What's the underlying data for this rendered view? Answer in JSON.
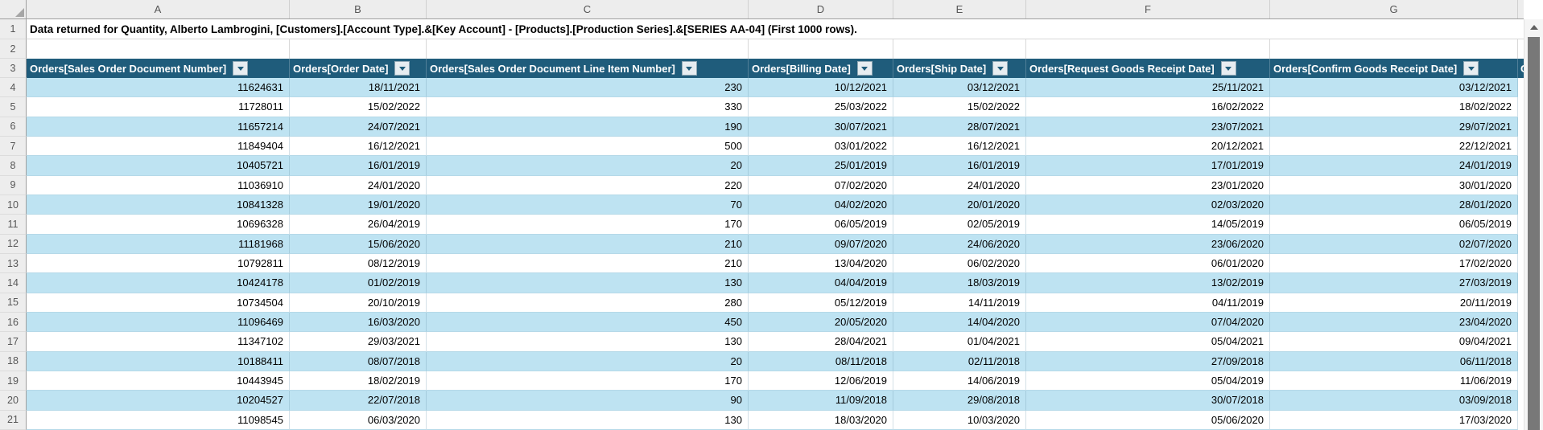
{
  "sheet": {
    "info_text": "Data returned for Quantity, Alberto Lambrogini, [Customers].[Account Type].&[Key Account] - [Products].[Production Series].&[SERIES AA-04] (First 1000 rows).",
    "column_letters": [
      "A",
      "B",
      "C",
      "D",
      "E",
      "F",
      "G"
    ],
    "row_numbers": [
      1,
      2,
      3,
      4,
      5,
      6,
      7,
      8,
      9,
      10,
      11,
      12,
      13,
      14,
      15,
      16,
      17,
      18,
      19,
      20,
      21
    ],
    "table": {
      "headers": [
        "Orders[Sales Order Document Number]",
        "Orders[Order Date]",
        "Orders[Sales Order Document Line Item Number]",
        "Orders[Billing Date]",
        "Orders[Ship Date]",
        "Orders[Request Goods Receipt Date]",
        "Orders[Confirm Goods Receipt Date]"
      ],
      "overflow_header": "O",
      "rows": [
        [
          "11624631",
          "18/11/2021",
          "230",
          "10/12/2021",
          "03/12/2021",
          "25/11/2021",
          "03/12/2021"
        ],
        [
          "11728011",
          "15/02/2022",
          "330",
          "25/03/2022",
          "15/02/2022",
          "16/02/2022",
          "18/02/2022"
        ],
        [
          "11657214",
          "24/07/2021",
          "190",
          "30/07/2021",
          "28/07/2021",
          "23/07/2021",
          "29/07/2021"
        ],
        [
          "11849404",
          "16/12/2021",
          "500",
          "03/01/2022",
          "16/12/2021",
          "20/12/2021",
          "22/12/2021"
        ],
        [
          "10405721",
          "16/01/2019",
          "20",
          "25/01/2019",
          "16/01/2019",
          "17/01/2019",
          "24/01/2019"
        ],
        [
          "11036910",
          "24/01/2020",
          "220",
          "07/02/2020",
          "24/01/2020",
          "23/01/2020",
          "30/01/2020"
        ],
        [
          "10841328",
          "19/01/2020",
          "70",
          "04/02/2020",
          "20/01/2020",
          "02/03/2020",
          "28/01/2020"
        ],
        [
          "10696328",
          "26/04/2019",
          "170",
          "06/05/2019",
          "02/05/2019",
          "14/05/2019",
          "06/05/2019"
        ],
        [
          "11181968",
          "15/06/2020",
          "210",
          "09/07/2020",
          "24/06/2020",
          "23/06/2020",
          "02/07/2020"
        ],
        [
          "10792811",
          "08/12/2019",
          "210",
          "13/04/2020",
          "06/02/2020",
          "06/01/2020",
          "17/02/2020"
        ],
        [
          "10424178",
          "01/02/2019",
          "130",
          "04/04/2019",
          "18/03/2019",
          "13/02/2019",
          "27/03/2019"
        ],
        [
          "10734504",
          "20/10/2019",
          "280",
          "05/12/2019",
          "14/11/2019",
          "04/11/2019",
          "20/11/2019"
        ],
        [
          "11096469",
          "16/03/2020",
          "450",
          "20/05/2020",
          "14/04/2020",
          "07/04/2020",
          "23/04/2020"
        ],
        [
          "11347102",
          "29/03/2021",
          "130",
          "28/04/2021",
          "01/04/2021",
          "05/04/2021",
          "09/04/2021"
        ],
        [
          "10188411",
          "08/07/2018",
          "20",
          "08/11/2018",
          "02/11/2018",
          "27/09/2018",
          "06/11/2018"
        ],
        [
          "10443945",
          "18/02/2019",
          "170",
          "12/06/2019",
          "14/06/2019",
          "05/04/2019",
          "11/06/2019"
        ],
        [
          "10204527",
          "22/07/2018",
          "90",
          "11/09/2018",
          "29/08/2018",
          "30/07/2018",
          "03/09/2018"
        ],
        [
          "11098545",
          "06/03/2020",
          "130",
          "18/03/2020",
          "10/03/2020",
          "05/06/2020",
          "17/03/2020"
        ]
      ]
    },
    "colors": {
      "header_bg": "#1F5C7B",
      "band_bg": "#BEE3F2",
      "gutter_bg": "#EDEDED",
      "scrollbar_thumb": "#787878"
    }
  }
}
